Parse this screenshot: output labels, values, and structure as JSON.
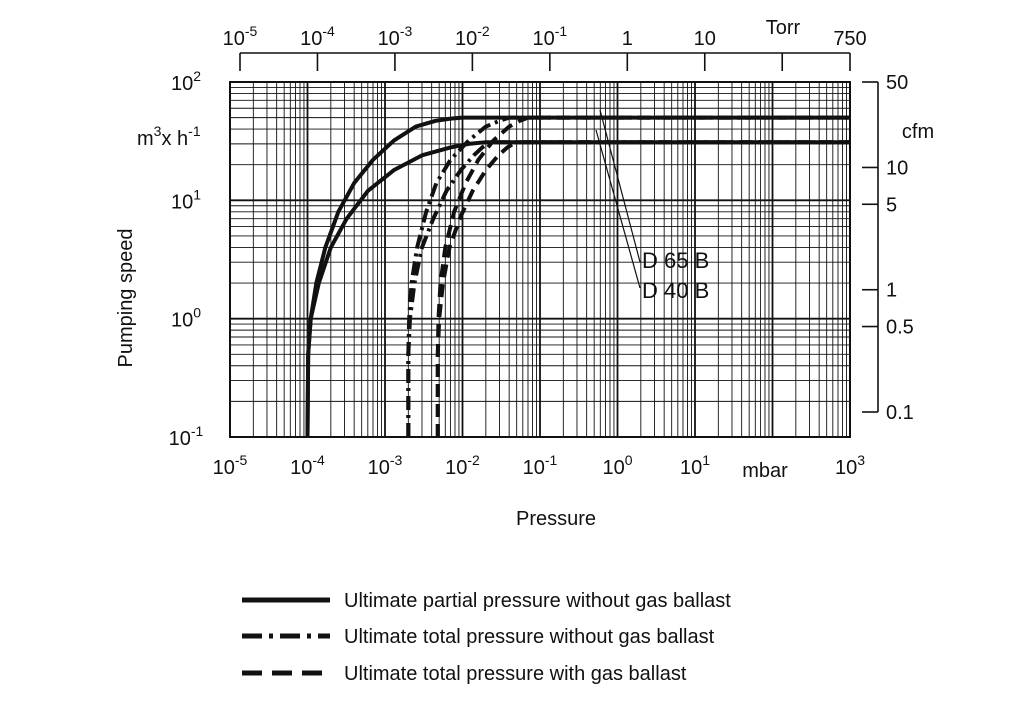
{
  "chart_data": {
    "type": "line",
    "title": "",
    "xlabel": "Pressure",
    "x_unit": "mbar",
    "x_scale": "log",
    "xlim": [
      1e-05,
      1000
    ],
    "x_ticks": [
      {
        "base": "10",
        "exp": "-5",
        "value": 1e-05
      },
      {
        "base": "10",
        "exp": "-4",
        "value": 0.0001
      },
      {
        "base": "10",
        "exp": "-3",
        "value": 0.001
      },
      {
        "base": "10",
        "exp": "-2",
        "value": 0.01
      },
      {
        "base": "10",
        "exp": "-1",
        "value": 0.1
      },
      {
        "base": "10",
        "exp": "0",
        "value": 1
      },
      {
        "base": "10",
        "exp": "1",
        "value": 10
      },
      {
        "base": "10",
        "exp": "3",
        "value": 1000
      }
    ],
    "ylabel": "Pumping speed",
    "y_unit_base": "m",
    "y_unit_mid": "x h",
    "y_unit_exp1": "3",
    "y_unit_exp2": "-1",
    "y_scale": "log",
    "ylim": [
      0.1,
      100
    ],
    "y_ticks": [
      {
        "base": "10",
        "exp": "2",
        "value": 100
      },
      {
        "base": "10",
        "exp": "1",
        "value": 10
      },
      {
        "base": "10",
        "exp": "0",
        "value": 1
      },
      {
        "base": "10",
        "exp": "-1",
        "value": 0.1
      }
    ],
    "top_axis": {
      "unit": "Torr",
      "scale": "log",
      "ticks": [
        {
          "base": "10",
          "exp": "-5",
          "value": 1e-05
        },
        {
          "base": "10",
          "exp": "-4",
          "value": 0.0001
        },
        {
          "base": "10",
          "exp": "-3",
          "value": 0.001
        },
        {
          "base": "10",
          "exp": "-2",
          "value": 0.01
        },
        {
          "base": "10",
          "exp": "-1",
          "value": 0.1
        },
        {
          "base": "1",
          "exp": "",
          "value": 1
        },
        {
          "base": "10",
          "exp": "",
          "value": 10
        },
        {
          "base": "750",
          "exp": "",
          "value": 750
        }
      ],
      "minor_ticks": [
        100
      ]
    },
    "right_axis": {
      "unit": "cfm",
      "scale": "log",
      "ticks": [
        {
          "label": "50",
          "value": 50
        },
        {
          "label": "10",
          "value": 10
        },
        {
          "label": "5",
          "value": 5
        },
        {
          "label": "1",
          "value": 1
        },
        {
          "label": "0.5",
          "value": 0.5
        },
        {
          "label": "0.1",
          "value": 0.1
        }
      ]
    },
    "annotations": [
      "D 65 B",
      "D 40 B"
    ],
    "series": [
      {
        "model": "D 65 B",
        "style": "solid",
        "points": [
          [
            0.0001,
            0.1
          ],
          [
            0.000102,
            0.5
          ],
          [
            0.00011,
            1
          ],
          [
            0.00013,
            2
          ],
          [
            0.00017,
            4
          ],
          [
            0.00025,
            8
          ],
          [
            0.0004,
            14
          ],
          [
            0.0007,
            22
          ],
          [
            0.0013,
            32
          ],
          [
            0.0025,
            42
          ],
          [
            0.0045,
            47
          ],
          [
            0.007,
            49
          ],
          [
            0.01,
            50
          ],
          [
            1000,
            50
          ]
        ]
      },
      {
        "model": "D 40 B",
        "style": "solid",
        "points": [
          [
            0.0001,
            0.1
          ],
          [
            0.000102,
            0.5
          ],
          [
            0.00011,
            1
          ],
          [
            0.00014,
            2
          ],
          [
            0.0002,
            4
          ],
          [
            0.00032,
            7
          ],
          [
            0.0006,
            12
          ],
          [
            0.0013,
            18
          ],
          [
            0.003,
            24
          ],
          [
            0.007,
            28
          ],
          [
            0.012,
            30
          ],
          [
            0.02,
            31
          ],
          [
            1000,
            31
          ]
        ]
      },
      {
        "model": "D 65 B",
        "style": "dashdot",
        "points": [
          [
            0.002,
            0.1
          ],
          [
            0.002,
            0.5
          ],
          [
            0.00205,
            1
          ],
          [
            0.0022,
            2
          ],
          [
            0.0026,
            4
          ],
          [
            0.0034,
            8
          ],
          [
            0.0046,
            14
          ],
          [
            0.007,
            22
          ],
          [
            0.012,
            32
          ],
          [
            0.02,
            42
          ],
          [
            0.03,
            47
          ],
          [
            0.04,
            50
          ],
          [
            1000,
            50
          ]
        ]
      },
      {
        "model": "D 40 B",
        "style": "dashdot",
        "points": [
          [
            0.002,
            0.1
          ],
          [
            0.002,
            0.5
          ],
          [
            0.0021,
            1
          ],
          [
            0.0024,
            2
          ],
          [
            0.003,
            4
          ],
          [
            0.0042,
            7
          ],
          [
            0.0062,
            12
          ],
          [
            0.0095,
            18
          ],
          [
            0.014,
            24
          ],
          [
            0.018,
            28
          ],
          [
            0.021,
            30
          ],
          [
            0.025,
            31
          ],
          [
            1000,
            31
          ]
        ]
      },
      {
        "model": "D 65 B",
        "style": "dashed",
        "points": [
          [
            0.0048,
            0.1
          ],
          [
            0.0048,
            0.5
          ],
          [
            0.0049,
            1
          ],
          [
            0.0052,
            2
          ],
          [
            0.006,
            4
          ],
          [
            0.0078,
            8
          ],
          [
            0.011,
            14
          ],
          [
            0.016,
            22
          ],
          [
            0.025,
            32
          ],
          [
            0.04,
            42
          ],
          [
            0.055,
            47
          ],
          [
            0.07,
            50
          ],
          [
            1000,
            50
          ]
        ]
      },
      {
        "model": "D 40 B",
        "style": "dashed",
        "points": [
          [
            0.0048,
            0.1
          ],
          [
            0.0048,
            0.5
          ],
          [
            0.005,
            1
          ],
          [
            0.0056,
            2
          ],
          [
            0.0068,
            4
          ],
          [
            0.0092,
            7
          ],
          [
            0.0135,
            12
          ],
          [
            0.02,
            18
          ],
          [
            0.029,
            24
          ],
          [
            0.038,
            28
          ],
          [
            0.045,
            30
          ],
          [
            0.055,
            31
          ],
          [
            1000,
            31
          ]
        ]
      }
    ],
    "legend": {
      "placement": "bottom",
      "entries": [
        {
          "style": "solid",
          "label": "Ultimate partial pressure without gas ballast"
        },
        {
          "style": "dashdot",
          "label": "Ultimate total pressure without gas ballast"
        },
        {
          "style": "dashed",
          "label": "Ultimate total pressure with gas ballast"
        }
      ]
    },
    "grid": true
  }
}
